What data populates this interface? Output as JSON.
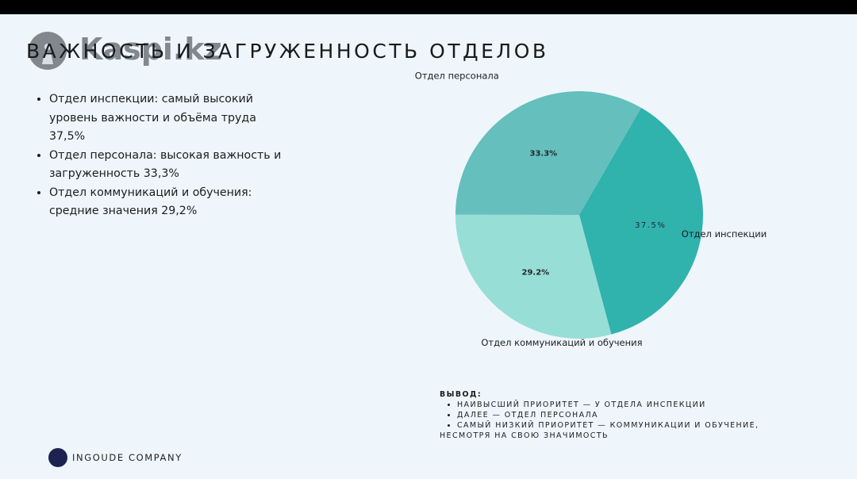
{
  "watermark": {
    "text": "Kaspi.kz"
  },
  "title": "ВАЖНОСТЬ И ЗАГРУЖЕННОСТЬ ОТДЕЛОВ",
  "bullets": [
    "Отдел инспекции: самый высокий уровень важности и объёма труда 37,5%",
    "Отдел персонала: высокая важность и загруженность 33,3%",
    "Отдел коммуникаций и обучения: средние значения 29,2%"
  ],
  "chart_data": {
    "type": "pie",
    "categories": [
      "Отдел инспекции",
      "Отдел коммуникаций и обучения",
      "Отдел персонала"
    ],
    "values": [
      37.5,
      29.2,
      33.3
    ],
    "labels": [
      "37.5%",
      "29.2%",
      "33.3%"
    ],
    "colors": [
      "#30b2ad",
      "#97ded7",
      "#65bfbd"
    ]
  },
  "conclusion": {
    "heading": "ВЫВОД:",
    "items": [
      "НАИВЫСШИЙ ПРИОРИТЕТ — У ОТДЕЛА ИНСПЕКЦИИ",
      "ДАЛЕЕ — ОТДЕЛ ПЕРСОНАЛА",
      "САМЫЙ НИЗКИЙ ПРИОРИТЕТ — КОММУНИКАЦИИ И ОБУЧЕНИЕ,"
    ],
    "continuation": "НЕСМОТРЯ НА СВОЮ ЗНАЧИМОСТЬ"
  },
  "company": "INGOUDE COMPANY"
}
